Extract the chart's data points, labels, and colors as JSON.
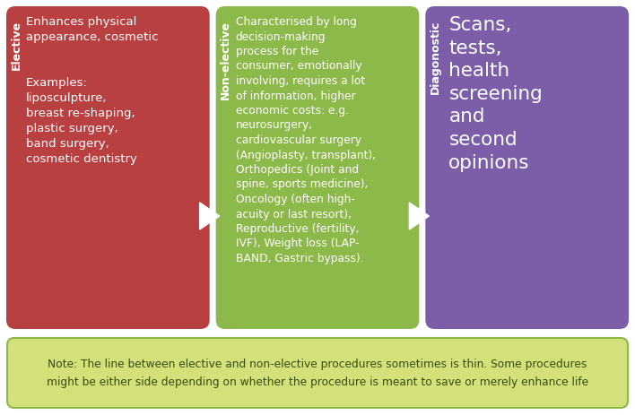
{
  "bg_color": "#ffffff",
  "box1_color": "#b94040",
  "box2_color": "#8db84a",
  "box3_color": "#7b5ea7",
  "note_bg_color": "#d4e07a",
  "note_border_color": "#8db84a",
  "box1_label": "Elective",
  "box2_label": "Non-elective",
  "box3_label": "Diagonostic",
  "box1_text": "Enhances physical\nappearance, cosmetic\n\n\nExamples:\nliposculpture,\nbreast re-shaping,\nplastic surgery,\nband surgery,\ncosmetic dentistry",
  "box2_text": "Characterised by long\ndecision-making\nprocess for the\nconsumer, emotionally\ninvolving, requires a lot\nof information, higher\neconomic costs: e.g.\nneurosurgery,\ncardiovascular surgery\n(Angioplasty, transplant),\nOrthopedics (Joint and\nspine, sports medicine),\nOncology (often high-\nacuity or last resort),\nReproductive (fertility,\nIVF), Weight loss (LAP-\nBAND, Gastric bypass).",
  "box3_text": "Scans,\ntests,\nhealth\nscreening\nand\nsecond\nopinions",
  "note_text": "Note: The line between elective and non-elective procedures sometimes is thin. Some procedures\nmight be either side depending on whether the procedure is meant to save or merely enhance life",
  "text_color": "#ffffff",
  "note_text_color": "#3a4a10",
  "fig_w": 7.08,
  "fig_h": 4.64,
  "dpi": 100
}
